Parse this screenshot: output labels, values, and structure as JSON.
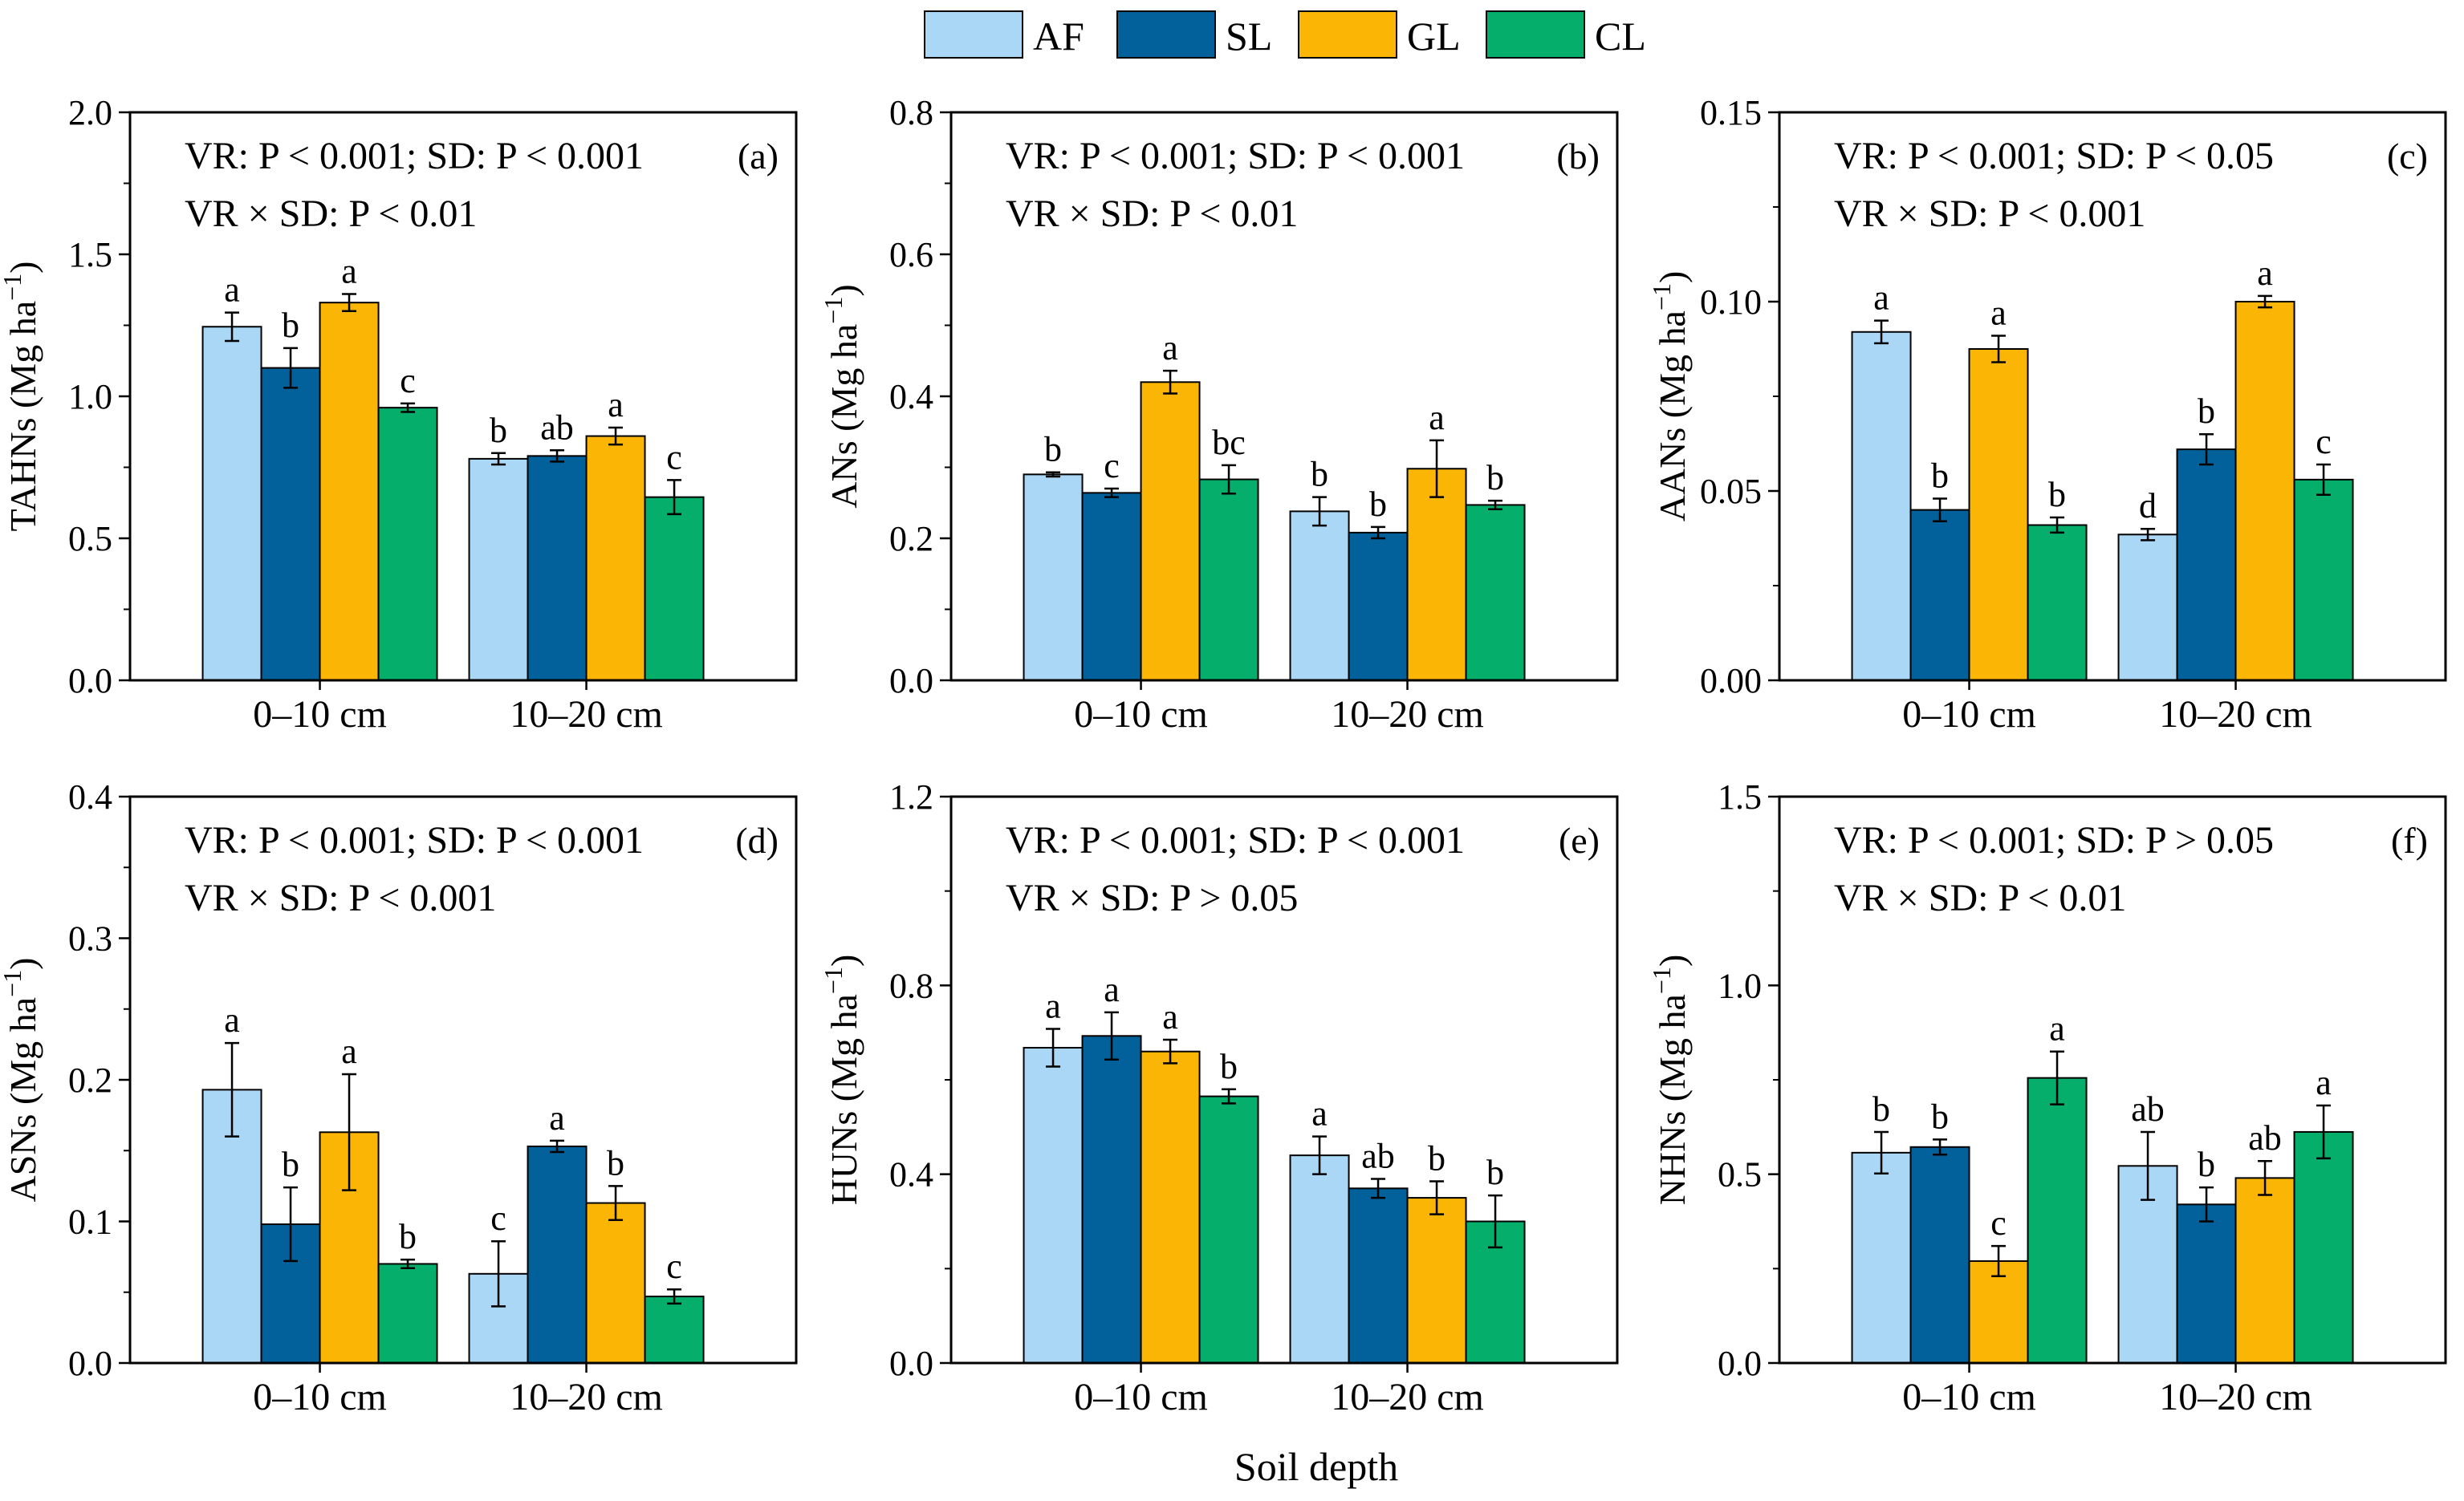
{
  "figure": {
    "x_axis_title": "Soil depth",
    "legend": [
      {
        "key": "AF",
        "label": "AF",
        "color": "#a9d7f5"
      },
      {
        "key": "SL",
        "label": "SL",
        "color": "#02619a"
      },
      {
        "key": "GL",
        "label": "GL",
        "color": "#fbb605"
      },
      {
        "key": "CL",
        "label": "CL",
        "color": "#06ae6b"
      }
    ]
  },
  "chart_data": [
    {
      "type": "bar",
      "panel": "(a)",
      "ylabel_main": "TAHNs (Mg ha",
      "ylabel_sup": "−1",
      "ylabel_close": ")",
      "stats_line1": "VR: P < 0.001; SD: P < 0.001",
      "stats_line2": "VR × SD: P < 0.01",
      "ylim": [
        0,
        2.0
      ],
      "yticks": [
        "0.0",
        "0.5",
        "1.0",
        "1.5",
        "2.0"
      ],
      "categories": [
        "0–10 cm",
        "10–20 cm"
      ],
      "series": [
        {
          "name": "AF",
          "values": [
            1.245,
            0.78
          ],
          "errors": [
            0.05,
            0.02
          ],
          "letters": [
            "a",
            "b"
          ]
        },
        {
          "name": "SL",
          "values": [
            1.1,
            0.79
          ],
          "errors": [
            0.07,
            0.02
          ],
          "letters": [
            "b",
            "ab"
          ]
        },
        {
          "name": "GL",
          "values": [
            1.33,
            0.86
          ],
          "errors": [
            0.03,
            0.03
          ],
          "letters": [
            "a",
            "a"
          ]
        },
        {
          "name": "CL",
          "values": [
            0.96,
            0.645
          ],
          "errors": [
            0.015,
            0.06
          ],
          "letters": [
            "c",
            "c"
          ]
        }
      ]
    },
    {
      "type": "bar",
      "panel": "(b)",
      "ylabel_main": "ANs (Mg ha",
      "ylabel_sup": "−1",
      "ylabel_close": ")",
      "stats_line1": "VR: P < 0.001; SD: P < 0.001",
      "stats_line2": "VR × SD: P < 0.01",
      "ylim": [
        0,
        0.8
      ],
      "yticks": [
        "0.0",
        "0.2",
        "0.4",
        "0.6",
        "0.8"
      ],
      "categories": [
        "0–10 cm",
        "10–20 cm"
      ],
      "series": [
        {
          "name": "AF",
          "values": [
            0.29,
            0.238
          ],
          "errors": [
            0.003,
            0.02
          ],
          "letters": [
            "b",
            "b"
          ]
        },
        {
          "name": "SL",
          "values": [
            0.264,
            0.208
          ],
          "errors": [
            0.006,
            0.008
          ],
          "letters": [
            "c",
            "b"
          ]
        },
        {
          "name": "GL",
          "values": [
            0.42,
            0.298
          ],
          "errors": [
            0.016,
            0.04
          ],
          "letters": [
            "a",
            "a"
          ]
        },
        {
          "name": "CL",
          "values": [
            0.283,
            0.247
          ],
          "errors": [
            0.02,
            0.006
          ],
          "letters": [
            "bc",
            "b"
          ]
        }
      ]
    },
    {
      "type": "bar",
      "panel": "(c)",
      "ylabel_main": "AANs (Mg ha",
      "ylabel_sup": "−1",
      "ylabel_close": ")",
      "stats_line1": "VR: P < 0.001; SD: P < 0.05",
      "stats_line2": "VR × SD: P < 0.001",
      "ylim": [
        0,
        0.15
      ],
      "yticks": [
        "0.00",
        "0.05",
        "0.10",
        "0.15"
      ],
      "categories": [
        "0–10 cm",
        "10–20 cm"
      ],
      "series": [
        {
          "name": "AF",
          "values": [
            0.092,
            0.0385
          ],
          "errors": [
            0.003,
            0.0015
          ],
          "letters": [
            "a",
            "d"
          ]
        },
        {
          "name": "SL",
          "values": [
            0.045,
            0.061
          ],
          "errors": [
            0.003,
            0.004
          ],
          "letters": [
            "b",
            "b"
          ]
        },
        {
          "name": "GL",
          "values": [
            0.0875,
            0.1
          ],
          "errors": [
            0.0035,
            0.0015
          ],
          "letters": [
            "a",
            "a"
          ]
        },
        {
          "name": "CL",
          "values": [
            0.041,
            0.053
          ],
          "errors": [
            0.002,
            0.004
          ],
          "letters": [
            "b",
            "c"
          ]
        }
      ]
    },
    {
      "type": "bar",
      "panel": "(d)",
      "ylabel_main": "ASNs (Mg ha",
      "ylabel_sup": "−1",
      "ylabel_close": ")",
      "stats_line1": "VR: P < 0.001; SD: P < 0.001",
      "stats_line2": "VR × SD: P < 0.001",
      "ylim": [
        0,
        0.4
      ],
      "yticks": [
        "0.0",
        "0.1",
        "0.2",
        "0.3",
        "0.4"
      ],
      "categories": [
        "0–10 cm",
        "10–20 cm"
      ],
      "series": [
        {
          "name": "AF",
          "values": [
            0.193,
            0.063
          ],
          "errors": [
            0.033,
            0.023
          ],
          "letters": [
            "a",
            "c"
          ]
        },
        {
          "name": "SL",
          "values": [
            0.098,
            0.153
          ],
          "errors": [
            0.026,
            0.004
          ],
          "letters": [
            "b",
            "a"
          ]
        },
        {
          "name": "GL",
          "values": [
            0.163,
            0.113
          ],
          "errors": [
            0.041,
            0.012
          ],
          "letters": [
            "a",
            "b"
          ]
        },
        {
          "name": "CL",
          "values": [
            0.07,
            0.047
          ],
          "errors": [
            0.003,
            0.005
          ],
          "letters": [
            "b",
            "c"
          ]
        }
      ]
    },
    {
      "type": "bar",
      "panel": "(e)",
      "ylabel_main": "HUNs (Mg ha",
      "ylabel_sup": "−1",
      "ylabel_close": ")",
      "stats_line1": "VR: P < 0.001; SD: P < 0.001",
      "stats_line2": "VR × SD: P > 0.05",
      "ylim": [
        0,
        1.2
      ],
      "yticks": [
        "0.0",
        "0.4",
        "0.8",
        "1.2"
      ],
      "categories": [
        "0–10 cm",
        "10–20 cm"
      ],
      "series": [
        {
          "name": "AF",
          "values": [
            0.668,
            0.44
          ],
          "errors": [
            0.04,
            0.04
          ],
          "letters": [
            "a",
            "a"
          ]
        },
        {
          "name": "SL",
          "values": [
            0.693,
            0.37
          ],
          "errors": [
            0.05,
            0.02
          ],
          "letters": [
            "a",
            "ab"
          ]
        },
        {
          "name": "GL",
          "values": [
            0.66,
            0.35
          ],
          "errors": [
            0.025,
            0.035
          ],
          "letters": [
            "a",
            "b"
          ]
        },
        {
          "name": "CL",
          "values": [
            0.565,
            0.3
          ],
          "errors": [
            0.015,
            0.055
          ],
          "letters": [
            "b",
            "b"
          ]
        }
      ]
    },
    {
      "type": "bar",
      "panel": "(f)",
      "ylabel_main": "NHNs (Mg ha",
      "ylabel_sup": "−1",
      "ylabel_close": ")",
      "stats_line1": "VR: P < 0.001; SD: P > 0.05",
      "stats_line2": "VR × SD: P < 0.01",
      "ylim": [
        0,
        1.5
      ],
      "yticks": [
        "0.0",
        "0.5",
        "1.0",
        "1.5"
      ],
      "categories": [
        "0–10 cm",
        "10–20 cm"
      ],
      "series": [
        {
          "name": "AF",
          "values": [
            0.557,
            0.522
          ],
          "errors": [
            0.055,
            0.09
          ],
          "letters": [
            "b",
            "ab"
          ]
        },
        {
          "name": "SL",
          "values": [
            0.572,
            0.42
          ],
          "errors": [
            0.02,
            0.045
          ],
          "letters": [
            "b",
            "b"
          ]
        },
        {
          "name": "GL",
          "values": [
            0.27,
            0.49
          ],
          "errors": [
            0.04,
            0.045
          ],
          "letters": [
            "c",
            "ab"
          ]
        },
        {
          "name": "CL",
          "values": [
            0.755,
            0.612
          ],
          "errors": [
            0.07,
            0.07
          ],
          "letters": [
            "a",
            "a"
          ]
        }
      ]
    }
  ]
}
